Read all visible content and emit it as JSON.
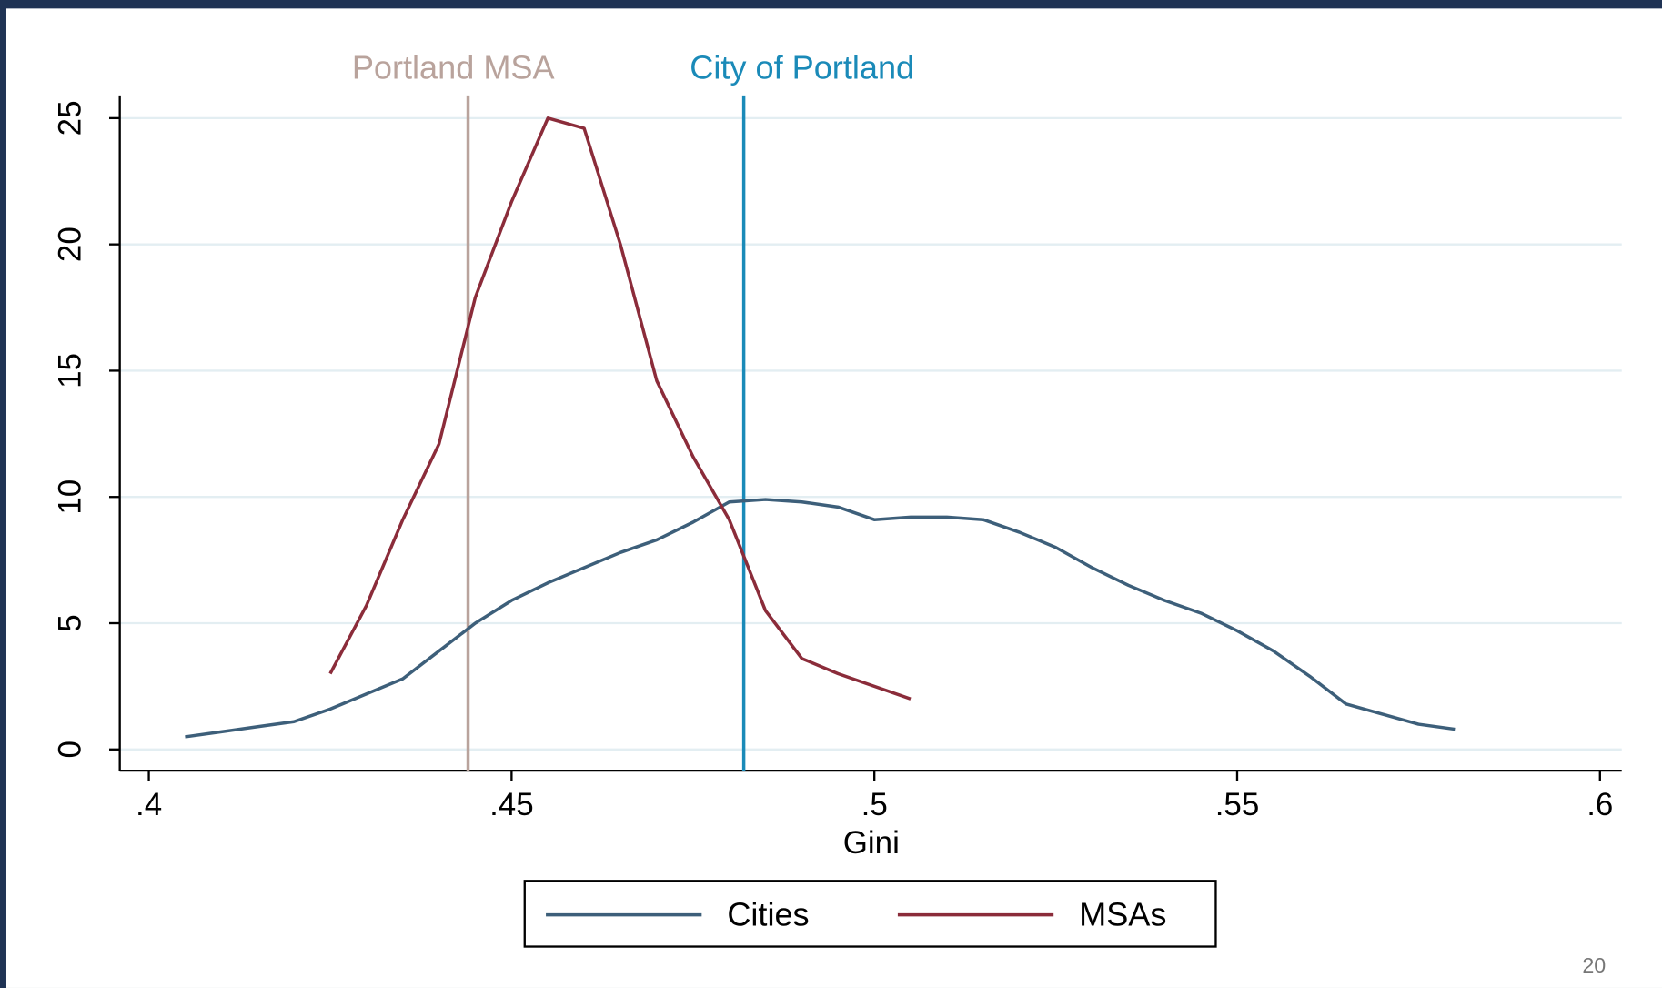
{
  "chart_data": {
    "type": "line",
    "x_label": "Gini",
    "x": [
      0.405,
      0.41,
      0.415,
      0.42,
      0.425,
      0.43,
      0.435,
      0.44,
      0.445,
      0.45,
      0.455,
      0.46,
      0.465,
      0.47,
      0.475,
      0.48,
      0.485,
      0.49,
      0.495,
      0.5,
      0.505,
      0.51,
      0.515,
      0.52,
      0.525,
      0.53,
      0.535,
      0.54,
      0.545,
      0.55,
      0.555,
      0.56,
      0.565,
      0.57,
      0.575,
      0.58
    ],
    "series": [
      {
        "name": "Cities",
        "color": "#3d5f7a",
        "values": [
          0.5,
          0.7,
          0.9,
          1.1,
          1.6,
          2.2,
          2.8,
          3.9,
          5.0,
          5.9,
          6.6,
          7.2,
          7.8,
          8.3,
          9.0,
          9.8,
          9.9,
          9.8,
          9.6,
          9.1,
          9.2,
          9.2,
          9.1,
          8.6,
          8.0,
          7.2,
          6.5,
          5.9,
          5.4,
          4.7,
          3.9,
          2.9,
          1.8,
          1.4,
          1.0,
          0.8
        ]
      },
      {
        "name": "MSAs",
        "color": "#8b2c3a",
        "values": [
          null,
          null,
          null,
          null,
          3.0,
          5.7,
          9.1,
          12.1,
          17.9,
          21.7,
          25.0,
          24.6,
          20.0,
          14.6,
          11.6,
          9.1,
          5.5,
          3.6,
          3.0,
          2.5,
          2.0,
          null,
          null,
          null,
          null,
          null,
          null,
          null,
          null,
          null,
          null,
          null,
          null,
          null,
          null,
          null
        ]
      }
    ],
    "reference_lines": [
      {
        "label": "Portland MSA",
        "x": 0.444,
        "color": "#b9a39c"
      },
      {
        "label": "City of Portland",
        "x": 0.482,
        "color": "#1a8ab8"
      }
    ],
    "xlim": [
      0.396,
      0.603
    ],
    "ylim": [
      -0.84,
      25.9
    ],
    "xticks": [
      {
        "value": 0.4,
        "label": ".4"
      },
      {
        "value": 0.45,
        "label": ".45"
      },
      {
        "value": 0.5,
        "label": ".5"
      },
      {
        "value": 0.55,
        "label": ".55"
      },
      {
        "value": 0.6,
        "label": ".6"
      }
    ],
    "yticks": [
      0,
      5,
      10,
      15,
      20,
      25
    ],
    "grid": true,
    "legend": "bottom",
    "page_number": "20"
  }
}
